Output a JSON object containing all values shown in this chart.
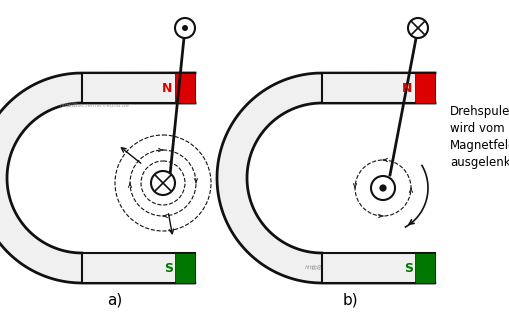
{
  "background_color": "#ffffff",
  "magnet_color": "#111111",
  "magnet_fill": "#f0f0f0",
  "N_label_color": "#dd0000",
  "S_label_color": "#007700",
  "N_rect_color": "#dd0000",
  "S_rect_color": "#007700",
  "text_annotation": "Drehspule\nwird vom\nMagnetfeld\nausgelenkt",
  "label_a": "a)",
  "label_b": "b)",
  "watermark": "http://tec.lehrerfreund.de",
  "fig_width": 5.1,
  "fig_height": 3.27,
  "dpi": 100
}
